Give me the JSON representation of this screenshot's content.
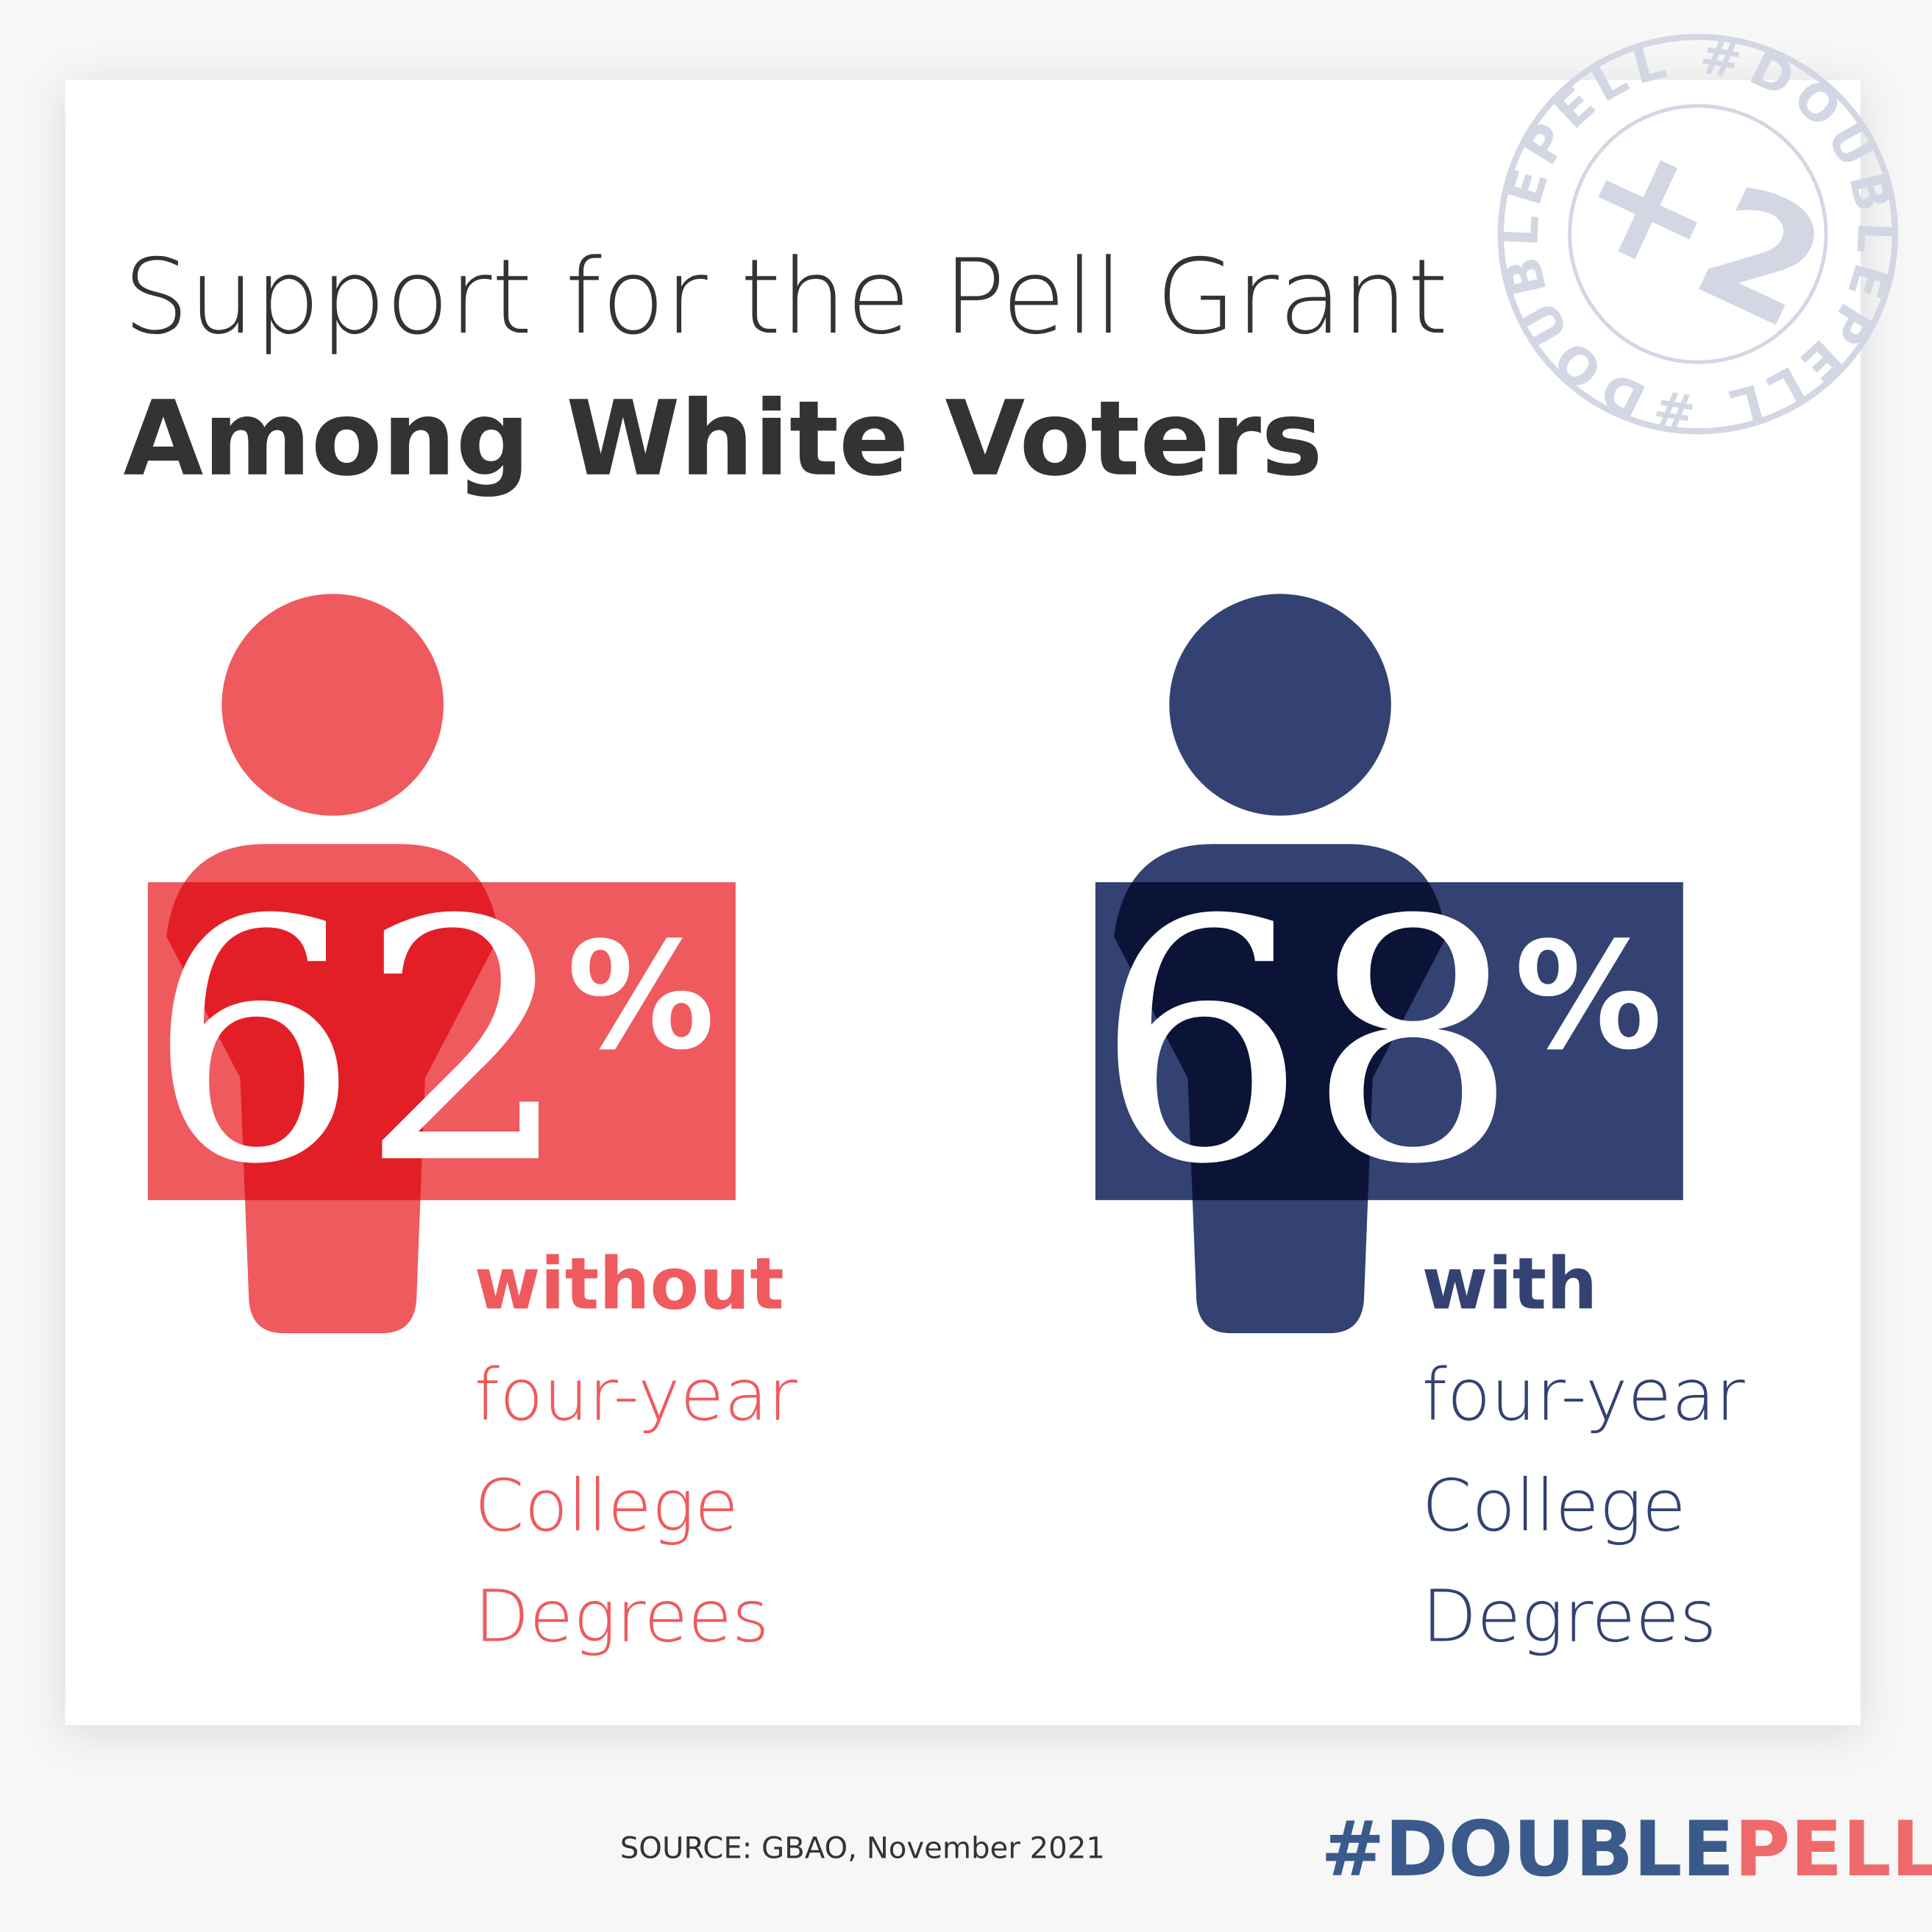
{
  "header": {
    "title": "Support for the Pell Grant",
    "subtitle": "Among White Voters"
  },
  "stamp": {
    "ring_text": "#DOUBLEPELL",
    "center_text": "+2"
  },
  "panels": [
    {
      "value": 62,
      "unit": "%",
      "qualifier": "without",
      "lines": [
        "four-year",
        "College",
        "Degrees"
      ]
    },
    {
      "value": 68,
      "unit": "%",
      "qualifier": "with",
      "lines": [
        "four-year",
        "College",
        "Degrees"
      ]
    }
  ],
  "footer": {
    "source": "SOURCE: GBAO, November 2021",
    "logo_left": "#DOUBLE",
    "logo_right": "PELL"
  }
}
